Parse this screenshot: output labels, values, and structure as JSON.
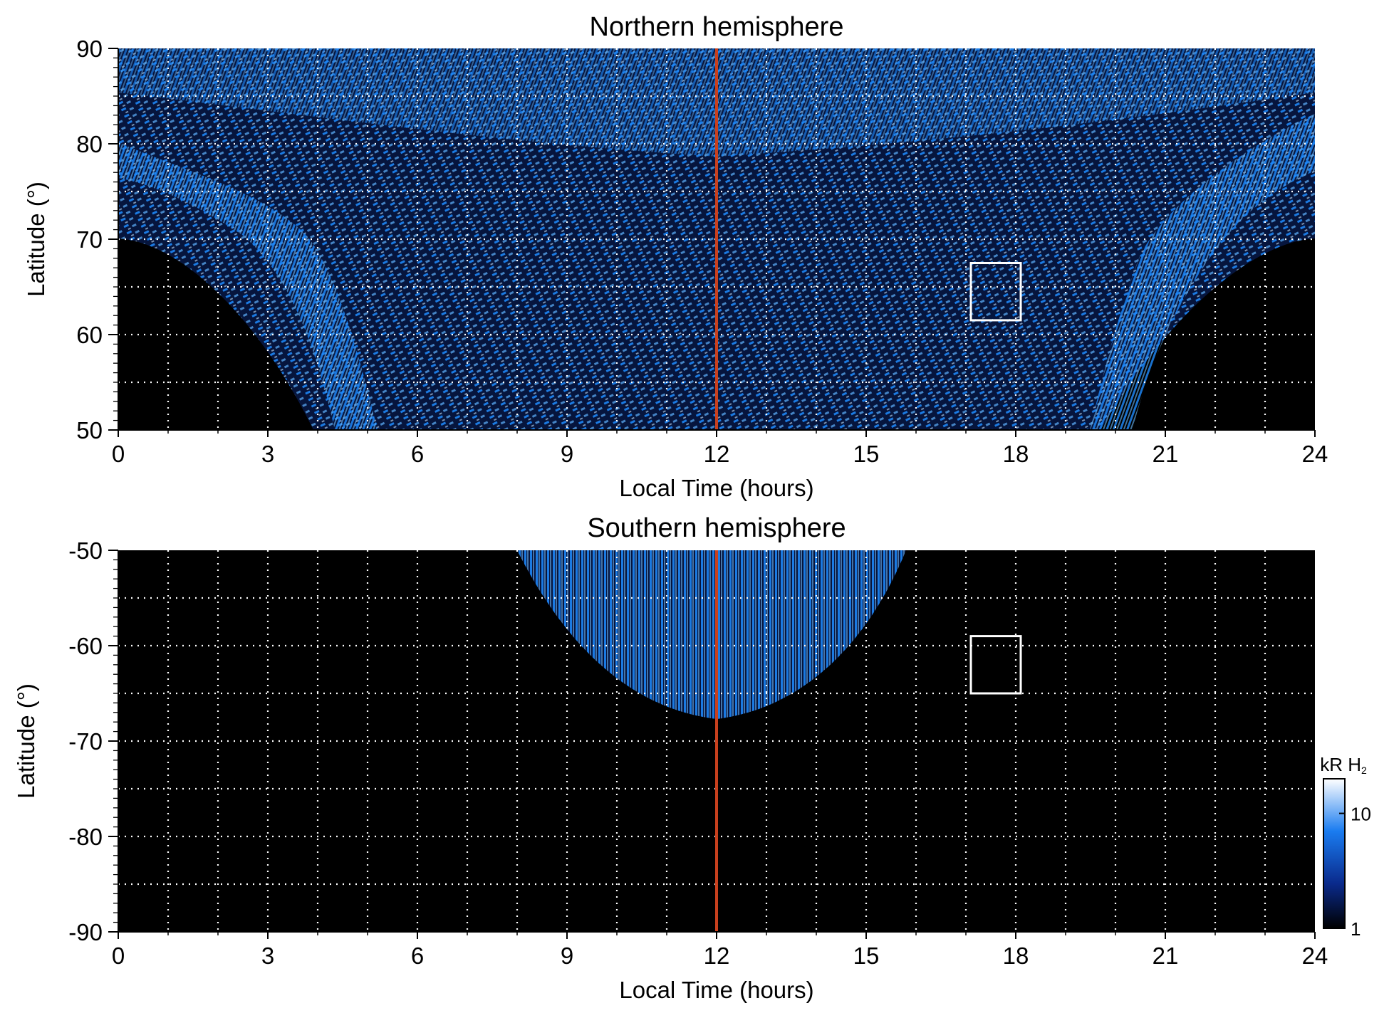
{
  "chart_data": [
    {
      "type": "heatmap",
      "title": "Northern hemisphere",
      "xlabel": "Local Time (hours)",
      "ylabel": "Latitude (°)",
      "xlim": [
        0,
        24
      ],
      "ylim": [
        50,
        90
      ],
      "xticks": [
        "0",
        "3",
        "6",
        "9",
        "12",
        "15",
        "18",
        "21",
        "24"
      ],
      "yticks": [
        "50",
        "60",
        "70",
        "80",
        "90"
      ],
      "grid": true,
      "vertical_line": {
        "x": 12,
        "color": "#c8401e"
      },
      "box": {
        "x": [
          17.1,
          18.1
        ],
        "y": [
          61.5,
          67.5
        ],
        "color": "#ffffff"
      },
      "coverage": "bright emission band near 70-80° along both flanks, patchy emission over 5-19.5 h down to 50°, no data below 70° before ~3 h and after ~21 h",
      "values_kR": {
        "min": 1,
        "max": 20
      }
    },
    {
      "type": "heatmap",
      "title": "Southern hemisphere",
      "xlabel": "Local Time (hours)",
      "ylabel": "Latitude (°)",
      "xlim": [
        0,
        24
      ],
      "ylim": [
        -90,
        -50
      ],
      "xticks": [
        "0",
        "3",
        "6",
        "9",
        "12",
        "15",
        "18",
        "21",
        "24"
      ],
      "yticks": [
        "-50",
        "-60",
        "-70",
        "-80",
        "-90"
      ],
      "grid": true,
      "vertical_line": {
        "x": 12,
        "color": "#c8401e"
      },
      "box": {
        "x": [
          17.1,
          18.1
        ],
        "y": [
          -65,
          -59
        ],
        "color": "#ffffff"
      },
      "coverage": "emission only between ~8 h and ~15.8 h, reaching down to about -68° near noon",
      "values_kR": {
        "min": 1,
        "max": 20
      }
    }
  ],
  "colorbar": {
    "label": "kR H",
    "label_subscript": "2",
    "ticks": [
      "10",
      "1"
    ],
    "scale": "log",
    "colors": [
      "#000000",
      "#0a2a8c",
      "#1a7cf0",
      "#ffffff"
    ]
  },
  "colors": {
    "background": "#000000",
    "emission": "#1f8cff",
    "grid": "#ffffff",
    "noon_line": "#c8401e"
  }
}
